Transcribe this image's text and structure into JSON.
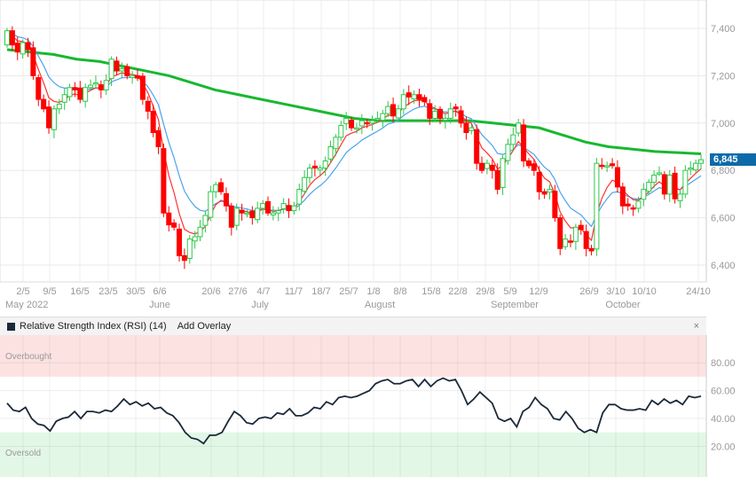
{
  "chart_data": {
    "type": "candlestick",
    "price_axis": {
      "ticks": [
        6400,
        6600,
        6800,
        7000,
        7200,
        7400
      ],
      "labels": [
        "6,400",
        "6,600",
        "6,800",
        "7,000",
        "7,200",
        "7,400"
      ],
      "ylim": [
        6330,
        7520
      ]
    },
    "last_price": 6845,
    "last_price_label": "6,845",
    "date_ticks": [
      "2/5",
      "9/5",
      "16/5",
      "23/5",
      "30/5",
      "6/6",
      "20/6",
      "27/6",
      "4/7",
      "11/7",
      "18/7",
      "25/7",
      "1/8",
      "8/8",
      "15/8",
      "22/8",
      "29/8",
      "5/9",
      "12/9",
      "26/9",
      "3/10",
      "10/10",
      "24/10"
    ],
    "month_labels": [
      "May 2022",
      "June",
      "July",
      "August",
      "September",
      "October"
    ],
    "closes": [
      7390,
      7330,
      7300,
      7340,
      7310,
      7200,
      7100,
      7060,
      6980,
      7060,
      7080,
      7120,
      7150,
      7140,
      7100,
      7150,
      7160,
      7170,
      7140,
      7180,
      7270,
      7220,
      7230,
      7200,
      7200,
      7190,
      7100,
      7050,
      6960,
      6900,
      6620,
      6570,
      6560,
      6440,
      6420,
      6510,
      6520,
      6560,
      6610,
      6710,
      6740,
      6710,
      6650,
      6560,
      6640,
      6620,
      6620,
      6600,
      6640,
      6660,
      6620,
      6620,
      6630,
      6660,
      6630,
      6650,
      6720,
      6770,
      6810,
      6810,
      6810,
      6840,
      6900,
      6940,
      6990,
      7020,
      6980,
      6980,
      7010,
      7000,
      7010,
      7020,
      7040,
      7070,
      7030,
      7060,
      7120,
      7110,
      7120,
      7100,
      7090,
      7020,
      7050,
      7020,
      7020,
      7060,
      7060,
      7000,
      6960,
      6980,
      6830,
      6800,
      6830,
      6800,
      6720,
      6850,
      6910,
      6950,
      7000,
      6840,
      6820,
      6800,
      6710,
      6700,
      6720,
      6600,
      6470,
      6510,
      6500,
      6560,
      6550,
      6470,
      6460,
      6830,
      6820,
      6820,
      6820,
      6730,
      6650,
      6650,
      6640,
      6670,
      6720,
      6750,
      6780,
      6790,
      6700,
      6780,
      6680,
      6700,
      6800,
      6810,
      6830,
      6845
    ],
    "ma_long": [
      7310,
      7300,
      7290,
      7270,
      7260,
      7240,
      7220,
      7200,
      7170,
      7140,
      7120,
      7100,
      7080,
      7060,
      7040,
      7020,
      7010,
      7010,
      7010,
      7010,
      7010,
      7000,
      6990,
      6980,
      6950,
      6920,
      6900,
      6890,
      6880,
      6875,
      6870
    ],
    "ma_fast_period": 5,
    "ma_mid_period": 10,
    "colors": {
      "up": "#2ec84a",
      "down": "#ff0000",
      "ma_fast": "#ff3030",
      "ma_mid": "#4aa3f0",
      "ma_long": "#18b82e",
      "rsi": "#1b2a3a",
      "accent": "#0d6aa8"
    }
  },
  "rsi": {
    "title": "Relative Strength Index (RSI) (14)",
    "add_overlay": "Add Overlay",
    "close": "×",
    "overbought": "Overbought",
    "oversold": "Oversold",
    "ticks": [
      "80.00",
      "60.00",
      "40.00",
      "20.00"
    ],
    "tick_values": [
      80,
      60,
      40,
      20
    ],
    "overbought_level": 70,
    "oversold_level": 30,
    "values": [
      51,
      46,
      45,
      48,
      40,
      36,
      35,
      31,
      38,
      40,
      41,
      45,
      40,
      45,
      45,
      44,
      46,
      45,
      49,
      54,
      50,
      52,
      49,
      51,
      47,
      48,
      44,
      42,
      37,
      30,
      26,
      25,
      22,
      28,
      28,
      30,
      38,
      45,
      42,
      37,
      36,
      40,
      41,
      40,
      44,
      43,
      47,
      42,
      42,
      44,
      48,
      47,
      52,
      50,
      55,
      56,
      55,
      56,
      58,
      60,
      65,
      67,
      68,
      65,
      65,
      67,
      68,
      63,
      68,
      63,
      67,
      69,
      67,
      68,
      60,
      50,
      54,
      59,
      55,
      51,
      40,
      38,
      40,
      34,
      45,
      48,
      55,
      50,
      47,
      40,
      39,
      45,
      40,
      33,
      30,
      32,
      30,
      44,
      50,
      50,
      47,
      46,
      46,
      47,
      46,
      53,
      50,
      54,
      51,
      53,
      50,
      56,
      55,
      56
    ]
  }
}
